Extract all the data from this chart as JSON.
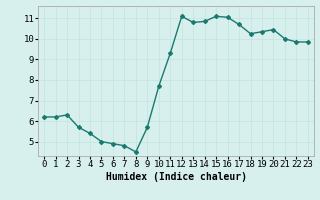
{
  "x": [
    0,
    1,
    2,
    3,
    4,
    5,
    6,
    7,
    8,
    9,
    10,
    11,
    12,
    13,
    14,
    15,
    16,
    17,
    18,
    19,
    20,
    21,
    22,
    23
  ],
  "y": [
    6.2,
    6.2,
    6.3,
    5.7,
    5.4,
    5.0,
    4.9,
    4.8,
    4.5,
    5.7,
    7.7,
    9.3,
    11.1,
    10.8,
    10.85,
    11.1,
    11.05,
    10.7,
    10.25,
    10.35,
    10.45,
    10.0,
    9.85,
    9.85
  ],
  "line_color": "#1a7a6e",
  "marker": "D",
  "marker_size": 2.0,
  "bg_color": "#d7f0ee",
  "grid_color": "#c8e6e2",
  "xlabel": "Humidex (Indice chaleur)",
  "xlabel_fontsize": 7,
  "xtick_labels": [
    "0",
    "1",
    "2",
    "3",
    "4",
    "5",
    "6",
    "7",
    "8",
    "9",
    "10",
    "11",
    "12",
    "13",
    "14",
    "15",
    "16",
    "17",
    "18",
    "19",
    "20",
    "21",
    "22",
    "23"
  ],
  "ytick_labels": [
    "5",
    "6",
    "7",
    "8",
    "9",
    "10",
    "11"
  ],
  "yticks": [
    5,
    6,
    7,
    8,
    9,
    10,
    11
  ],
  "ylim": [
    4.3,
    11.6
  ],
  "xlim": [
    -0.5,
    23.5
  ],
  "tick_fontsize": 6.5,
  "linewidth": 1.0
}
